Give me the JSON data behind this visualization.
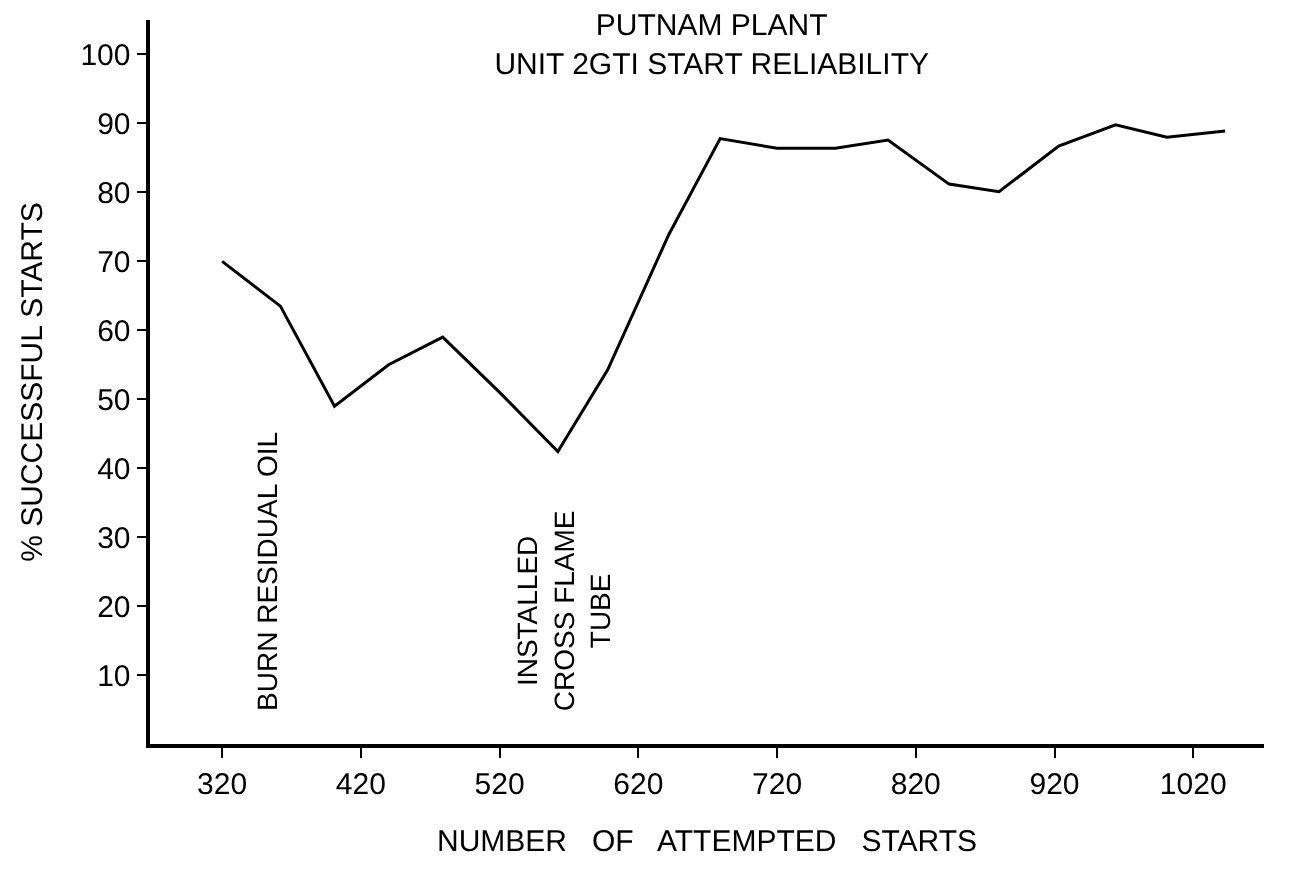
{
  "chart_data": {
    "type": "line",
    "title": "PUTNAM PLANT\nUNIT 2GTI START RELIABILITY",
    "xlabel": "NUMBER   OF   ATTEMPTED   STARTS",
    "ylabel": "% SUCCESSFUL STARTS",
    "x": [
      320,
      362,
      401,
      440,
      479,
      520,
      562,
      598,
      642,
      679,
      720,
      762,
      800,
      844,
      880,
      923,
      964,
      1001,
      1043
    ],
    "series": [
      {
        "color": "#000000",
        "values": [
          70,
          63.5,
          49,
          55,
          59,
          51,
          42.4,
          54.3,
          73.9,
          87.8,
          86.4,
          86.4,
          87.6,
          81.2,
          80.1,
          86.7,
          89.8,
          88,
          88.9
        ]
      }
    ],
    "xlim": [
      268,
      1071
    ],
    "ylim": [
      0,
      105
    ],
    "xticks": [
      320,
      420,
      520,
      620,
      720,
      820,
      920,
      1020
    ],
    "yticks": [
      10,
      20,
      30,
      40,
      50,
      60,
      70,
      80,
      90,
      100
    ],
    "legend": false,
    "marker": "none",
    "line_style": "solid",
    "annotations": [
      "BURN RESIDUAL OIL",
      "INSTALLED\nCROSS FLAME\nTUBE"
    ]
  }
}
